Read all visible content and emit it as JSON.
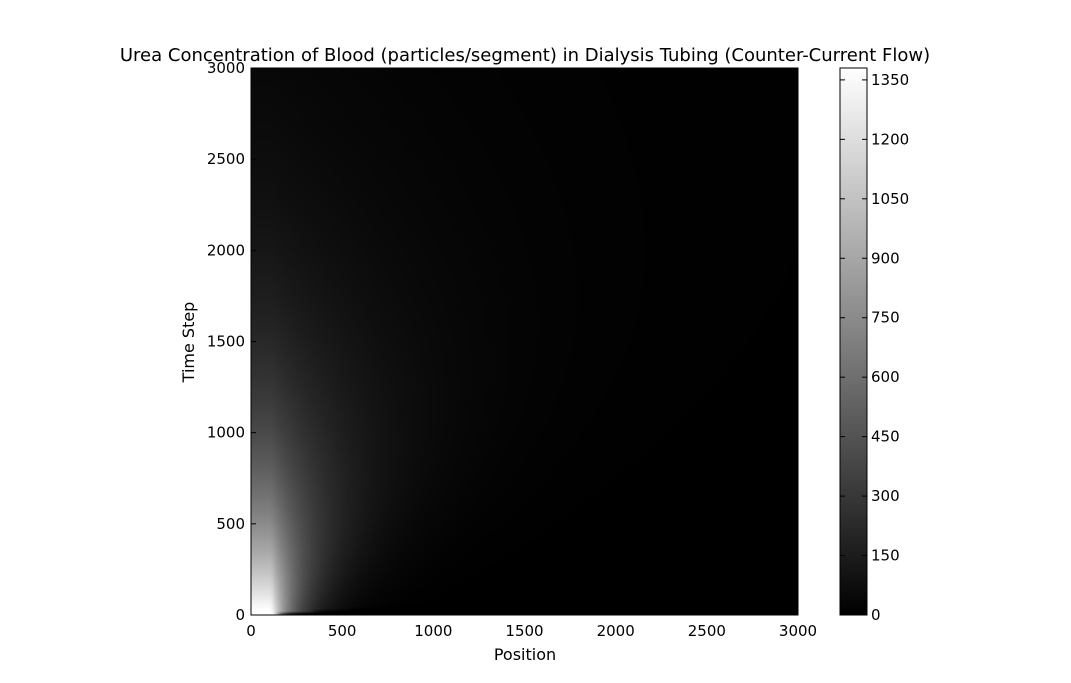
{
  "chart_data": {
    "type": "heatmap",
    "title": "Urea Concentration of Blood (particles/segment) in Dialysis Tubing (Counter-Current Flow)",
    "xlabel": "Position",
    "ylabel": "Time Step",
    "xlim": [
      0,
      3000
    ],
    "ylim": [
      0,
      3000
    ],
    "x_ticks": [
      0,
      500,
      1000,
      1500,
      2000,
      2500,
      3000
    ],
    "y_ticks": [
      0,
      500,
      1000,
      1500,
      2000,
      2500,
      3000
    ],
    "colormap": "gray",
    "colorbar": {
      "range": [
        0,
        1380
      ],
      "ticks": [
        0,
        150,
        300,
        450,
        600,
        750,
        900,
        1050,
        1200,
        1350
      ]
    },
    "field": {
      "description_free": true,
      "peak_value": 1380,
      "peak_position_range": [
        0,
        110
      ],
      "decay_with_position": true,
      "decay_with_time": true,
      "front_start_time": 0
    },
    "grid": false
  },
  "colors": {
    "background": "#ffffff",
    "axes": "#000000",
    "min": "#000000",
    "max": "#ffffff"
  }
}
